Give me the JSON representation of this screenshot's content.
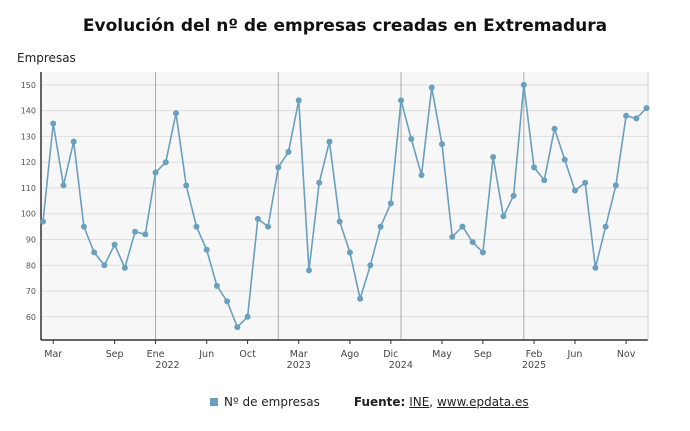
{
  "chart_data": {
    "type": "line",
    "title": "Evolución del nº de empresas creadas en Extremadura",
    "ylabel": "Empresas",
    "ylim": [
      51,
      155
    ],
    "yticks": [
      60,
      70,
      80,
      90,
      100,
      110,
      120,
      130,
      140,
      150
    ],
    "grid": true,
    "legend_position": "bottom",
    "color": "#6a9fbd",
    "x_start": "2021-02",
    "x_end": "2026-01",
    "xtick_labels": [
      {
        "month": "2021-03",
        "label": "Mar",
        "year": ""
      },
      {
        "month": "2021-09",
        "label": "Sep",
        "year": ""
      },
      {
        "month": "2022-01",
        "label": "Ene",
        "year": "2022"
      },
      {
        "month": "2022-06",
        "label": "Jun",
        "year": ""
      },
      {
        "month": "2022-10",
        "label": "Oct",
        "year": ""
      },
      {
        "month": "2023-03",
        "label": "Mar",
        "year": "2023"
      },
      {
        "month": "2023-08",
        "label": "Ago",
        "year": ""
      },
      {
        "month": "2023-12",
        "label": "Dic",
        "year": "2024"
      },
      {
        "month": "2024-05",
        "label": "May",
        "year": ""
      },
      {
        "month": "2024-09",
        "label": "Sep",
        "year": ""
      },
      {
        "month": "2025-02",
        "label": "Feb",
        "year": "2025"
      },
      {
        "month": "2025-06",
        "label": "Jun",
        "year": ""
      },
      {
        "month": "2025-11",
        "label": "Nov",
        "year": ""
      }
    ],
    "year_lines": [
      "2022-01",
      "2023-01",
      "2024-01",
      "2025-01"
    ],
    "series": [
      {
        "name": "Nº de empresas",
        "values": [
          97,
          135,
          111,
          128,
          95,
          85,
          80,
          88,
          79,
          93,
          92,
          116,
          120,
          139,
          111,
          95,
          86,
          72,
          66,
          56,
          60,
          98,
          95,
          118,
          124,
          144,
          78,
          112,
          128,
          97,
          85,
          67,
          80,
          95,
          104,
          144,
          129,
          115,
          149,
          127,
          91,
          95,
          89,
          85,
          122,
          99,
          107,
          150,
          118,
          113,
          133,
          121,
          109,
          112,
          79,
          95,
          111,
          138,
          137,
          141
        ]
      }
    ]
  },
  "source": {
    "label": "Fuente:",
    "org": "INE",
    "sep": ",",
    "site": "www.epdata.es"
  }
}
